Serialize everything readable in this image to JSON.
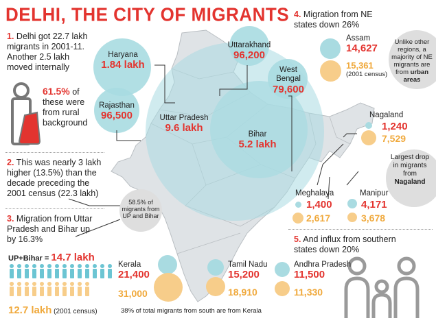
{
  "title": "DELHI, THE CITY OF MIGRANTS",
  "colors": {
    "accent": "#e3342f",
    "teal": "#a9dbe1",
    "orange": "#f7cd8a",
    "map": "#dfe3e6"
  },
  "point1": {
    "num": "1.",
    "text": "Delhi got 22.7 lakh migrants in 2001-11. Another 2.5 lakh moved internally",
    "pct": "61.5%",
    "pct_text_1": "of",
    "pct_text_2": "these were",
    "pct_text_3": "from rural",
    "pct_text_4": "background"
  },
  "point2": {
    "num": "2.",
    "text": "This was nearly 3 lakh higher (13.5%) than the decade preceding the 2001 census (22.3 lakh)"
  },
  "point3": {
    "num": "3.",
    "text": "Migration from Uttar Pradesh and Bihar up by 16.3%",
    "upbihar_label": "UP+Bihar = ",
    "upbihar_value": "14.7 lakh",
    "prev_value": "12.7 lakh",
    "prev_note": "(2001 census)"
  },
  "point4": {
    "num": "4.",
    "text": "Migration from NE states down 26%"
  },
  "point5": {
    "num": "5.",
    "text": "And influx from southern states down 20%"
  },
  "callout_up_bihar": "58.5% of migrants from UP and Bihar",
  "ne_note": {
    "line1": "Unlike other regions, a majority of NE migrants are from",
    "bold": "urban areas"
  },
  "drop_note": {
    "line1": "Largest drop in migrants from",
    "bold": "Nagaland"
  },
  "states": {
    "haryana": {
      "name": "Haryana",
      "value": "1.84 lakh"
    },
    "uttarakhand": {
      "name": "Uttarakhand",
      "value": "96,200"
    },
    "west_bengal": {
      "name": "West Bengal",
      "value": "79,600"
    },
    "rajasthan": {
      "name": "Rajasthan",
      "value": "96,500"
    },
    "uttar_pradesh": {
      "name": "Uttar Pradesh",
      "value": "9.6 lakh"
    },
    "bihar": {
      "name": "Bihar",
      "value": "5.2 lakh"
    },
    "assam": {
      "name": "Assam",
      "value": "14,627",
      "prev": "15,361",
      "prev_note": "(2001 census)"
    },
    "nagaland": {
      "name": "Nagaland",
      "value": "1,240",
      "prev": "7,529"
    },
    "meghalaya": {
      "name": "Meghalaya",
      "value": "1,400",
      "prev": "2,617"
    },
    "manipur": {
      "name": "Manipur",
      "value": "4,171",
      "prev": "3,678"
    },
    "kerala": {
      "name": "Kerala",
      "value": "21,400",
      "prev": "31,000"
    },
    "tamil_nadu": {
      "name": "Tamil Nadu",
      "value": "15,200",
      "prev": "18,910"
    },
    "andhra_pradesh": {
      "name": "Andhra Pradesh",
      "value": "11,500",
      "prev": "11,330"
    }
  },
  "south_footnote": "38% of total migrants from south are from Kerala"
}
